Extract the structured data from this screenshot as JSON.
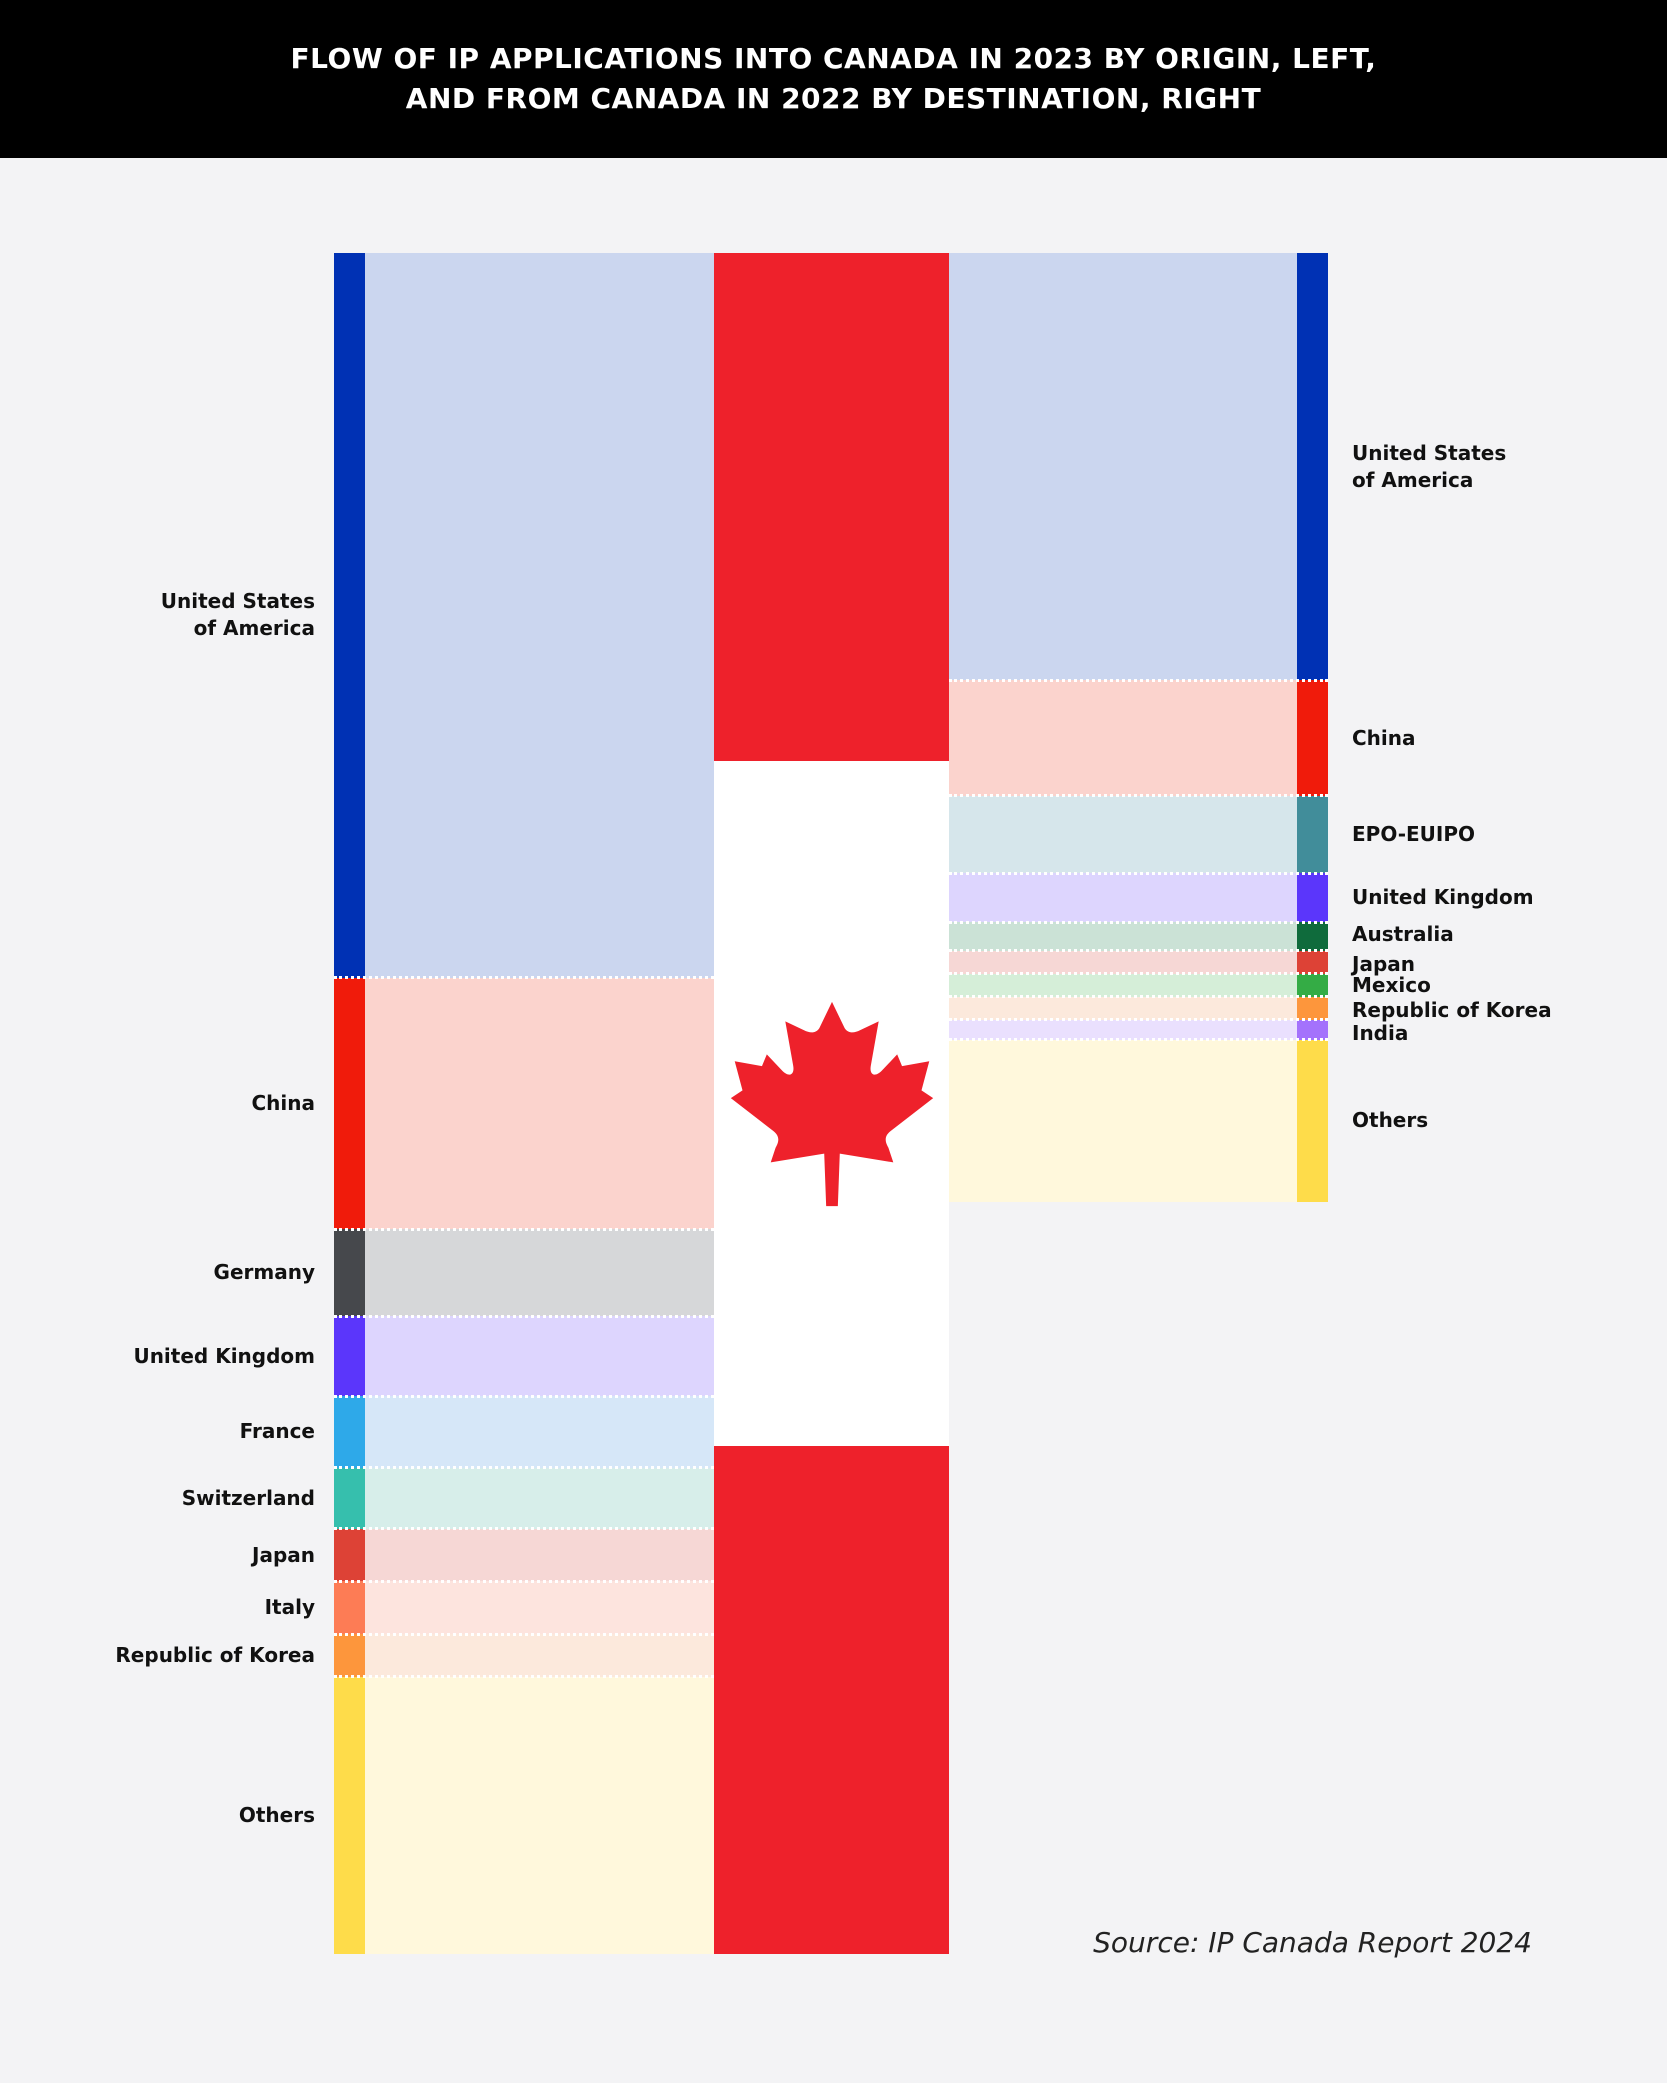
{
  "title": {
    "line1": "FLOW OF IP APPLICATIONS INTO CANADA IN 2023 BY ORIGIN, LEFT,",
    "line2": "AND FROM CANADA IN 2022 BY DESTINATION, RIGHT"
  },
  "source": "Source: IP Canada Report 2024",
  "colors": {
    "flag_red": "#ee212b",
    "flag_white": "#ffffff",
    "background": "#f3f3f5"
  },
  "icons": {
    "center": "maple-leaf-icon"
  },
  "chart_data": {
    "type": "sankey",
    "inflow": {
      "nodes": [
        {
          "label": "United States of America",
          "share": 42.6,
          "color": "#0031b4",
          "flow_color": "#cbd6ef"
        },
        {
          "label": "China",
          "share": 14.8,
          "color": "#f01b0b",
          "flow_color": "#fbd3cd"
        },
        {
          "label": "Germany",
          "share": 5.1,
          "color": "#46484c",
          "flow_color": "#d6d7d9"
        },
        {
          "label": "United Kingdom",
          "share": 4.7,
          "color": "#5b36fb",
          "flow_color": "#ddd5fe"
        },
        {
          "label": "France",
          "share": 4.2,
          "color": "#2ea9e9",
          "flow_color": "#d6e7f8"
        },
        {
          "label": "Switzerland",
          "share": 3.6,
          "color": "#36bfad",
          "flow_color": "#d7eeea"
        },
        {
          "label": "Japan",
          "share": 3.1,
          "color": "#dd4236",
          "flow_color": "#f6d7d5"
        },
        {
          "label": "Italy",
          "share": 3.1,
          "color": "#fd7c55",
          "flow_color": "#fde4de"
        },
        {
          "label": "Republic of Korea",
          "share": 2.5,
          "color": "#fd963c",
          "flow_color": "#fce9dc"
        },
        {
          "label": "Others",
          "share": 16.3,
          "color": "#fedc4a",
          "flow_color": "#fff8dc"
        }
      ]
    },
    "outflow": {
      "nodes": [
        {
          "label": "United States of America",
          "share": 44.7,
          "color": "#0031b4",
          "flow_color": "#cbd6ef"
        },
        {
          "label": "China",
          "share": 12.1,
          "color": "#f01b0b",
          "flow_color": "#fbd3cd"
        },
        {
          "label": "EPO-EUIPO",
          "share": 8.1,
          "color": "#418d9a",
          "flow_color": "#d6e6eb"
        },
        {
          "label": "United Kingdom",
          "share": 5.1,
          "color": "#5b36fb",
          "flow_color": "#ddd5fe"
        },
        {
          "label": "Australia",
          "share": 3.0,
          "color": "#0f6b3c",
          "flow_color": "#cbe2d6"
        },
        {
          "label": "Japan",
          "share": 2.4,
          "color": "#dd4236",
          "flow_color": "#f6d7d5"
        },
        {
          "label": "Mexico",
          "share": 2.4,
          "color": "#34ac45",
          "flow_color": "#d5eed8"
        },
        {
          "label": "Republic of Korea",
          "share": 2.4,
          "color": "#fd963c",
          "flow_color": "#fce9dc"
        },
        {
          "label": "India",
          "share": 2.1,
          "color": "#a472fc",
          "flow_color": "#eae0fe"
        },
        {
          "label": "Others",
          "share": 17.0,
          "color": "#fedc4a",
          "flow_color": "#fff8dc"
        }
      ]
    },
    "inflow_to_outflow_ratio": 1.792
  }
}
